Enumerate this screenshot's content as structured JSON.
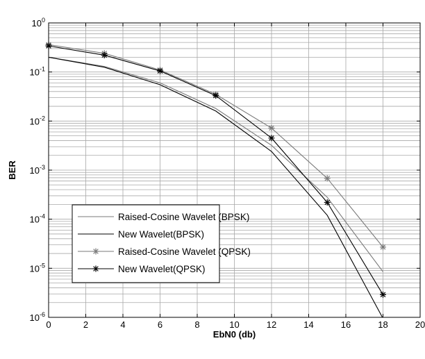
{
  "chart_data": {
    "type": "line",
    "title": "",
    "xlabel": "EbN0 (db)",
    "ylabel": "BER",
    "xlim": [
      0,
      20
    ],
    "ylim": [
      1e-06,
      1
    ],
    "yscale": "log",
    "grid": true,
    "legend_position": "bottom-left",
    "xticks": [
      "0",
      "2",
      "4",
      "6",
      "8",
      "10",
      "12",
      "14",
      "16",
      "18",
      "20"
    ],
    "yticks": [
      {
        "base": "10",
        "exp": "-6",
        "value": 1e-06
      },
      {
        "base": "10",
        "exp": "-5",
        "value": 1e-05
      },
      {
        "base": "10",
        "exp": "-4",
        "value": 0.0001
      },
      {
        "base": "10",
        "exp": "-3",
        "value": 0.001
      },
      {
        "base": "10",
        "exp": "-2",
        "value": 0.01
      },
      {
        "base": "10",
        "exp": "-1",
        "value": 0.1
      },
      {
        "base": "10",
        "exp": "0",
        "value": 1
      }
    ],
    "x": [
      0,
      3,
      6,
      9,
      12,
      15,
      18
    ],
    "series": [
      {
        "name": "Raised-Cosine Wavelet (BPSK)",
        "color": "#7a7a7a",
        "marker": "none",
        "values": [
          0.2,
          0.13,
          0.06,
          0.018,
          0.0032,
          0.00028,
          8.5e-06
        ]
      },
      {
        "name": "New Wavelet(BPSK)",
        "color": "#000000",
        "marker": "none",
        "values": [
          0.2,
          0.125,
          0.055,
          0.016,
          0.0024,
          0.00012,
          9.5e-07
        ]
      },
      {
        "name": "Raised-Cosine Wavelet (QPSK)",
        "color": "#7a7a7a",
        "marker": "asterisk",
        "values": [
          0.36,
          0.24,
          0.11,
          0.035,
          0.0072,
          0.00068,
          2.7e-05
        ]
      },
      {
        "name": "New Wavelet(QPSK)",
        "color": "#000000",
        "marker": "asterisk",
        "values": [
          0.34,
          0.22,
          0.105,
          0.033,
          0.0045,
          0.00022,
          2.9e-06
        ]
      }
    ]
  }
}
